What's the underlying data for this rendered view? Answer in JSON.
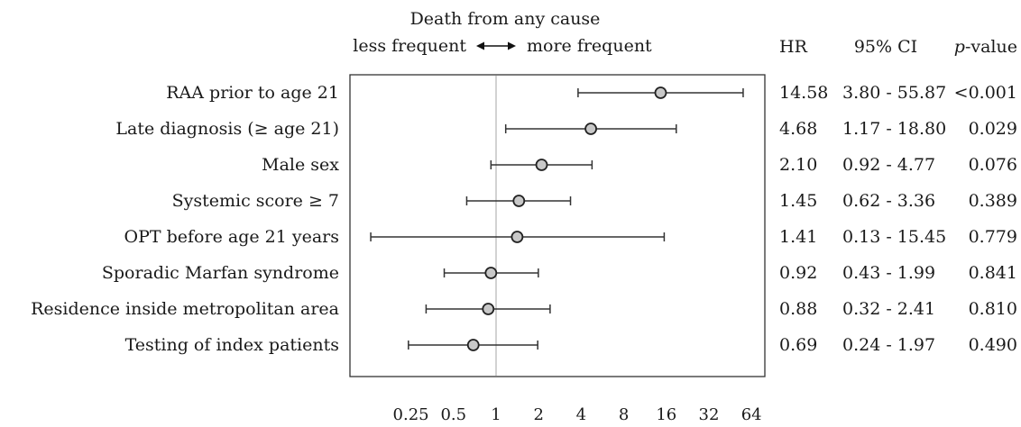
{
  "chart_data": {
    "type": "forest",
    "header": {
      "title": "Death from any cause",
      "left_direction": "less frequent",
      "right_direction": "more frequent",
      "col_hr": "HR",
      "col_ci": "95% CI",
      "col_p_italic": "p",
      "col_p_rest": "-value"
    },
    "x_scale": "log2",
    "xlim": [
      0.125,
      80
    ],
    "reference_line": 1,
    "ticks": [
      {
        "value": 0.25,
        "label": "0.25"
      },
      {
        "value": 0.5,
        "label": "0.5"
      },
      {
        "value": 1,
        "label": "1"
      },
      {
        "value": 2,
        "label": "2"
      },
      {
        "value": 4,
        "label": "4"
      },
      {
        "value": 8,
        "label": "8"
      },
      {
        "value": 16,
        "label": "16"
      },
      {
        "value": 32,
        "label": "32"
      },
      {
        "value": 64,
        "label": "64"
      }
    ],
    "rows": [
      {
        "label": "RAA prior to age 21",
        "hr": 14.58,
        "lo": 3.8,
        "hi": 55.87,
        "hr_text": "14.58",
        "ci_text": "3.80 - 55.87",
        "p_text": "<0.001"
      },
      {
        "label": "Late diagnosis (≥ age 21)",
        "hr": 4.68,
        "lo": 1.17,
        "hi": 18.8,
        "hr_text": "4.68",
        "ci_text": "1.17 - 18.80",
        "p_text": "0.029"
      },
      {
        "label": "Male sex",
        "hr": 2.1,
        "lo": 0.92,
        "hi": 4.77,
        "hr_text": "2.10",
        "ci_text": "0.92 - 4.77",
        "p_text": "0.076"
      },
      {
        "label": "Systemic score ≥ 7",
        "hr": 1.45,
        "lo": 0.62,
        "hi": 3.36,
        "hr_text": "1.45",
        "ci_text": "0.62 - 3.36",
        "p_text": "0.389"
      },
      {
        "label": "OPT before age 21 years",
        "hr": 1.41,
        "lo": 0.13,
        "hi": 15.45,
        "hr_text": "1.41",
        "ci_text": "0.13 - 15.45",
        "p_text": "0.779"
      },
      {
        "label": "Sporadic Marfan syndrome",
        "hr": 0.92,
        "lo": 0.43,
        "hi": 1.99,
        "hr_text": "0.92",
        "ci_text": "0.43 - 1.99",
        "p_text": "0.841"
      },
      {
        "label": "Residence inside metropolitan area",
        "hr": 0.88,
        "lo": 0.32,
        "hi": 2.41,
        "hr_text": "0.88",
        "ci_text": "0.32 - 2.41",
        "p_text": "0.810"
      },
      {
        "label": "Testing of index patients",
        "hr": 0.69,
        "lo": 0.24,
        "hi": 1.97,
        "hr_text": "0.69",
        "ci_text": "0.24 - 1.97",
        "p_text": "0.490"
      }
    ],
    "colors": {
      "marker_fill": "#c8c8c8",
      "marker_stroke": "#222222",
      "line": "#333333",
      "reference": "#b5b5b5",
      "frame": "#333333"
    }
  }
}
